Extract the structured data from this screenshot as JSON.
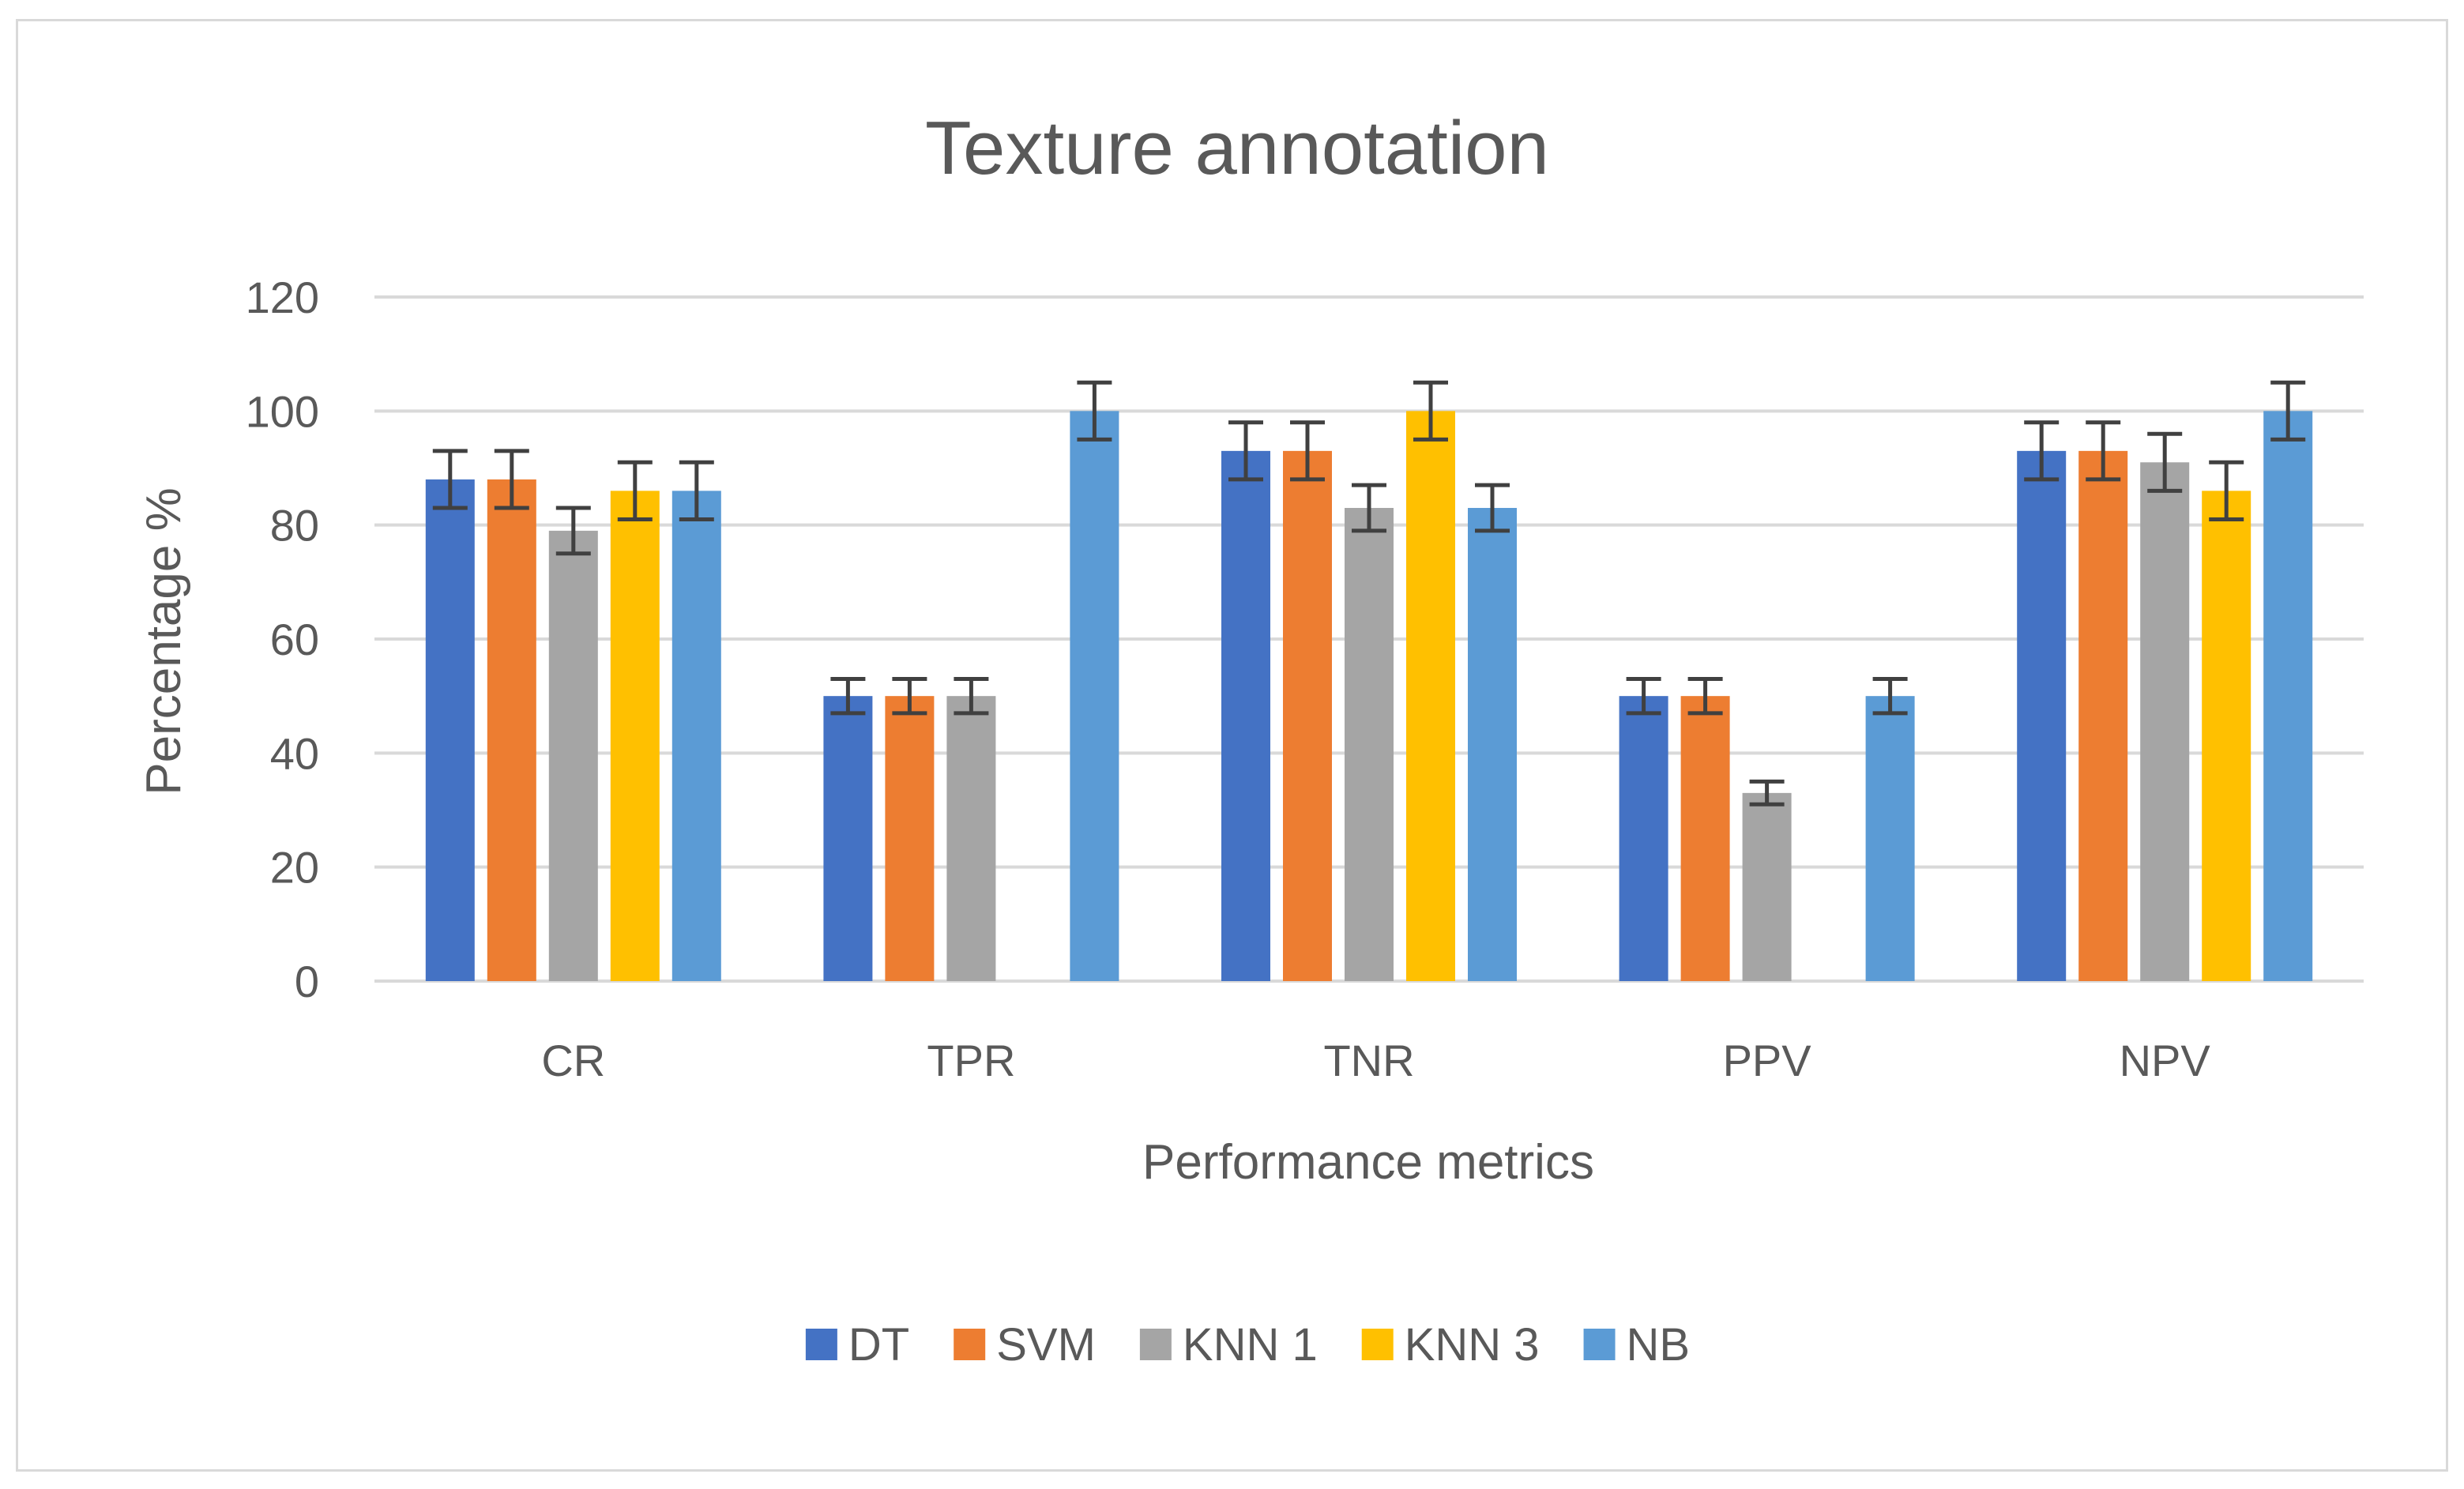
{
  "chart_data": {
    "type": "bar",
    "title": "Texture annotation",
    "xlabel": "Performance metrics",
    "ylabel": "Percentage %",
    "ylim": [
      0,
      120
    ],
    "yticks": [
      0,
      20,
      40,
      60,
      80,
      100,
      120
    ],
    "grid": true,
    "legend_position": "bottom",
    "categories": [
      "CR",
      "TPR",
      "TNR",
      "PPV",
      "NPV"
    ],
    "series": [
      {
        "name": "DT",
        "color": "#4472c4",
        "values": [
          88,
          50,
          93,
          50,
          93
        ],
        "errors": [
          5,
          3,
          5,
          3,
          5
        ]
      },
      {
        "name": "SVM",
        "color": "#ed7d31",
        "values": [
          88,
          50,
          93,
          50,
          93
        ],
        "errors": [
          5,
          3,
          5,
          3,
          5
        ]
      },
      {
        "name": "KNN 1",
        "color": "#a5a5a5",
        "values": [
          79,
          50,
          83,
          33,
          91
        ],
        "errors": [
          4,
          3,
          4,
          2,
          5
        ]
      },
      {
        "name": "KNN 3",
        "color": "#ffc000",
        "values": [
          86,
          0,
          100,
          0,
          86
        ],
        "errors": [
          5,
          0,
          5,
          0,
          5
        ]
      },
      {
        "name": "NB",
        "color": "#5b9bd5",
        "values": [
          86,
          100,
          83,
          50,
          100
        ],
        "errors": [
          5,
          5,
          4,
          3,
          5
        ]
      }
    ]
  }
}
